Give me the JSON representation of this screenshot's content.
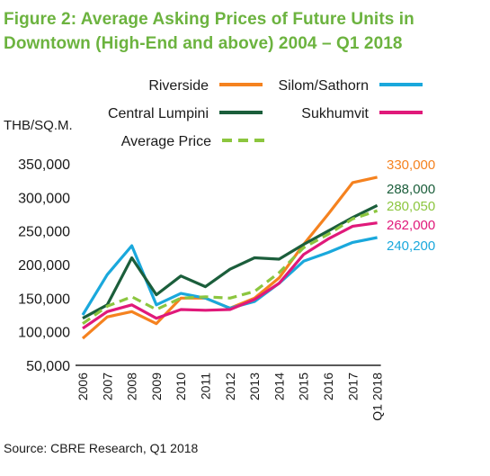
{
  "figure": {
    "title": "Figure 2: Average Asking Prices of Future Units in Downtown (High-End and above) 2004 – Q1 2018",
    "source": "Source: CBRE Research, Q1 2018"
  },
  "chart_data": {
    "type": "line",
    "title": "Figure 2: Average Asking Prices of Future Units in Downtown (High-End and above) 2004 – Q1 2018",
    "ylabel": "THB/SQ.M.",
    "xlabel": "",
    "x": [
      "2006",
      "2007",
      "2008",
      "2009",
      "2010",
      "2011",
      "2012",
      "2013",
      "2014",
      "2015",
      "2016",
      "2017",
      "Q1 2018"
    ],
    "yticks": [
      "350,000",
      "300,000",
      "250,000",
      "200,000",
      "150,000",
      "100,000",
      "50,000"
    ],
    "ylim": [
      50000,
      350000
    ],
    "grid": false,
    "legend_position": "top",
    "series": [
      {
        "name": "Riverside",
        "color": "#f5821f",
        "dashed": false,
        "end_label": "330,000",
        "values": [
          90000,
          122000,
          130000,
          112000,
          150000,
          150000,
          135000,
          150000,
          180000,
          230000,
          275000,
          322000,
          330000
        ]
      },
      {
        "name": "Silom/Sathorn",
        "color": "#1aa8dc",
        "dashed": false,
        "end_label": "240,200",
        "values": [
          125000,
          185000,
          228000,
          140000,
          157000,
          150000,
          135000,
          145000,
          172000,
          205000,
          218000,
          233000,
          240200
        ]
      },
      {
        "name": "Central Lumpini",
        "color": "#1b5e3b",
        "dashed": false,
        "end_label": "288,000",
        "values": [
          120000,
          140000,
          210000,
          155000,
          183000,
          167000,
          193000,
          210000,
          208000,
          230000,
          250000,
          270000,
          288000
        ]
      },
      {
        "name": "Sukhumvit",
        "color": "#e0197a",
        "dashed": false,
        "end_label": "262,000",
        "values": [
          105000,
          130000,
          140000,
          120000,
          133000,
          132000,
          133000,
          148000,
          172000,
          215000,
          238000,
          257000,
          262000
        ]
      },
      {
        "name": "Average Price",
        "color": "#8cc63f",
        "dashed": true,
        "end_label": "280,050",
        "values": [
          112000,
          138000,
          152000,
          133000,
          150000,
          152000,
          150000,
          160000,
          188000,
          225000,
          245000,
          268000,
          280050
        ]
      }
    ]
  }
}
